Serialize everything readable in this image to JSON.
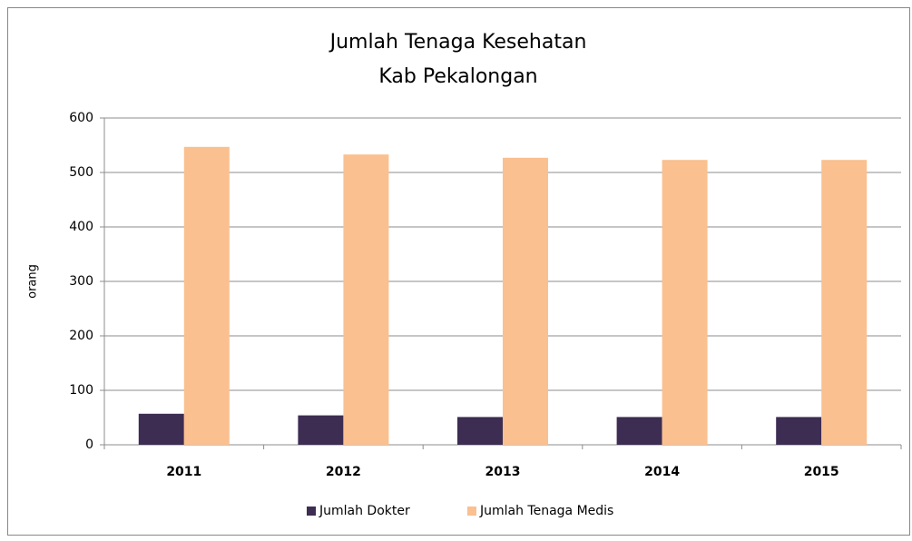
{
  "chart_data": {
    "type": "bar",
    "title": [
      "Jumlah Tenaga Kesehatan",
      "Kab Pekalongan"
    ],
    "y_label": "orang",
    "categories": [
      "2011",
      "2012",
      "2013",
      "2014",
      "2015"
    ],
    "series": [
      {
        "name": "Jumlah Dokter",
        "color": "#3d2d52",
        "values": [
          57,
          54,
          51,
          51,
          51
        ]
      },
      {
        "name": "Jumlah Tenaga Medis",
        "color": "#fac090",
        "values": [
          547,
          533,
          527,
          523,
          523
        ]
      }
    ],
    "ylim": [
      0,
      600
    ],
    "yticks": [
      0,
      100,
      200,
      300,
      400,
      500,
      600
    ],
    "grid": true,
    "legend": "bottom"
  }
}
